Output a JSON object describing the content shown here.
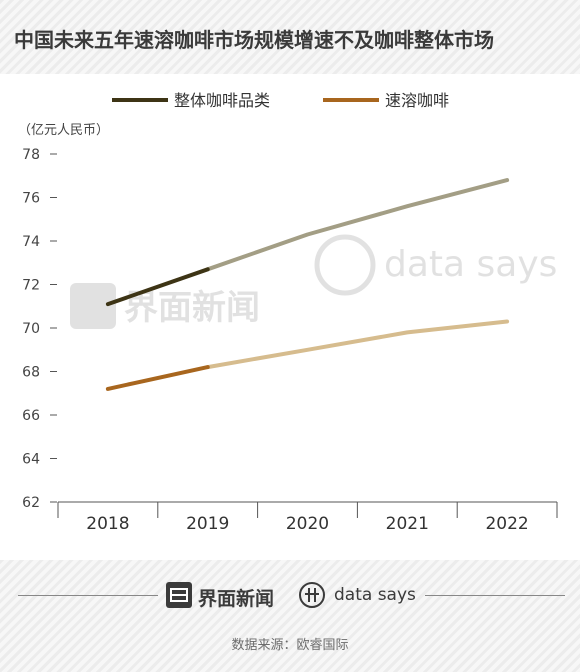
{
  "title": "中国未来五年速溶咖啡市场规模增速不及咖啡整体市场",
  "source": "数据来源：欧睿国际",
  "brand": {
    "jiemian": "界面新闻",
    "datasays": "data says"
  },
  "watermark": {
    "jiemian": "界面新闻",
    "datasays": "data says"
  },
  "chart_data": {
    "type": "line",
    "unit_label": "（亿元人民币）",
    "categories": [
      "2018",
      "2019",
      "2020",
      "2021",
      "2022"
    ],
    "ylim": [
      62,
      78
    ],
    "yticks": [
      62,
      64,
      66,
      68,
      70,
      72,
      74,
      76,
      78
    ],
    "legend_position": "top",
    "grid": false,
    "series": [
      {
        "name": "整体咖啡品类",
        "values": [
          71.1,
          72.7,
          74.3,
          75.6,
          76.8
        ],
        "color": "#3d3415",
        "forecast_color": "#a39e85"
      },
      {
        "name": "速溶咖啡",
        "values": [
          67.2,
          68.2,
          69.0,
          69.8,
          70.3
        ],
        "color": "#a8661e",
        "forecast_color": "#d6bc8e"
      }
    ]
  }
}
